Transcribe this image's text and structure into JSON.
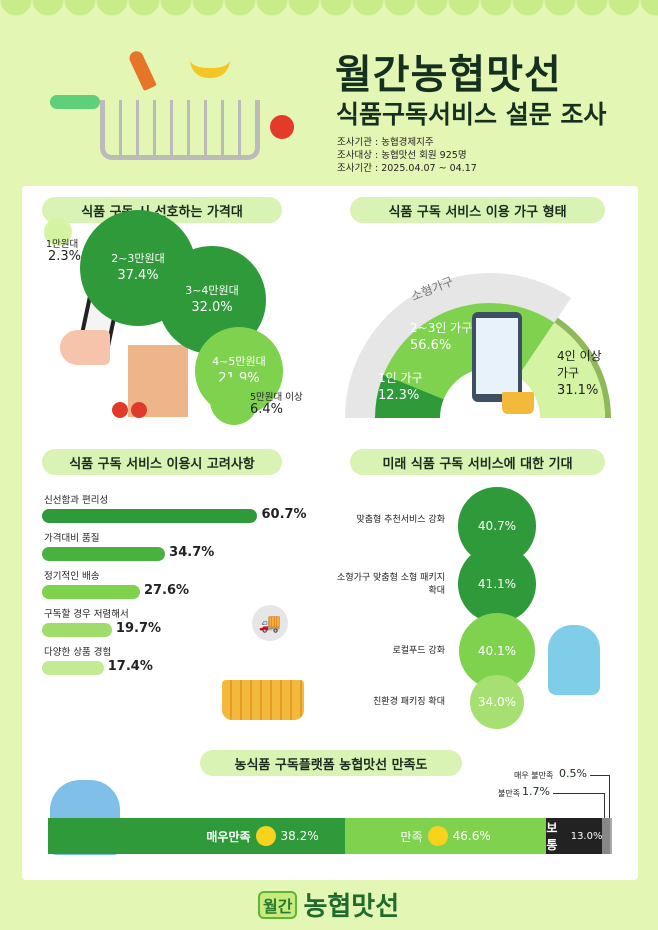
{
  "header": {
    "title": "월간농협맛선",
    "subtitle": "식품구독서비스 설문 조사",
    "meta": [
      "조사기관 : 농협경제지주",
      "조사대상 : 농협맛선 회원 925명",
      "조사기간 : 2025.04.07 ~ 04.17"
    ]
  },
  "colors": {
    "dark_green": "#2e9a3a",
    "mid_green": "#7fd24e",
    "light_green": "#d4f4a4",
    "gray": "#e6e6e6",
    "black": "#222222"
  },
  "chart_data": [
    {
      "type": "bubble",
      "title": "식품 구독 시 선호하는 가격대",
      "categories": [
        "1만원대",
        "2~3만원대",
        "3~4만원대",
        "4~5만원대",
        "5만원대 이상"
      ],
      "values": [
        2.3,
        37.4,
        32.0,
        21.9,
        6.4
      ],
      "labels": [
        "2.3%",
        "37.4%",
        "32.0%",
        "21.9%",
        "6.4%"
      ]
    },
    {
      "type": "pie",
      "subtype": "semicircle",
      "title": "식품 구독 서비스 이용 가구 형태",
      "categories": [
        "1인 가구",
        "2~3인 가구",
        "4인 이상 가구"
      ],
      "values": [
        12.3,
        56.6,
        31.1
      ],
      "labels": [
        "12.3%",
        "56.6%",
        "31.1%"
      ],
      "group_label": "소형가구",
      "group_members": [
        "1인 가구",
        "2~3인 가구"
      ]
    },
    {
      "type": "bar",
      "orientation": "horizontal",
      "title": "식품 구독 서비스 이용시 고려사항",
      "categories": [
        "신선함과 편리성",
        "가격대비 품질",
        "정기적인 배송",
        "구독할 경우 저렴해서",
        "다양한 상품 경험"
      ],
      "values": [
        60.7,
        34.7,
        27.6,
        19.7,
        17.4
      ],
      "labels": [
        "60.7%",
        "34.7%",
        "27.6%",
        "19.7%",
        "17.4%"
      ]
    },
    {
      "type": "bubble",
      "title": "미래 식품 구독 서비스에 대한 기대",
      "categories": [
        "맞춤형 추천서비스 강화",
        "소형가구 맞춤형 소형 패키지 확대",
        "로컬푸드 강화",
        "친환경 패키징 확대"
      ],
      "values": [
        40.7,
        41.1,
        40.1,
        34.0
      ],
      "labels": [
        "40.7%",
        "41.1%",
        "40.1%",
        "34.0%"
      ]
    },
    {
      "type": "bar",
      "subtype": "stacked-100",
      "title": "농식품 구독플랫폼 농협맛선 만족도",
      "categories": [
        "매우만족",
        "만족",
        "보통",
        "불만족",
        "매우 불만족"
      ],
      "values": [
        38.2,
        46.6,
        13.0,
        1.7,
        0.5
      ],
      "labels": [
        "38.2%",
        "46.6%",
        "13.0%",
        "1.7%",
        "0.5%"
      ]
    }
  ],
  "footer": {
    "logo_badge": "월간",
    "logo_text": "농협맛선"
  }
}
